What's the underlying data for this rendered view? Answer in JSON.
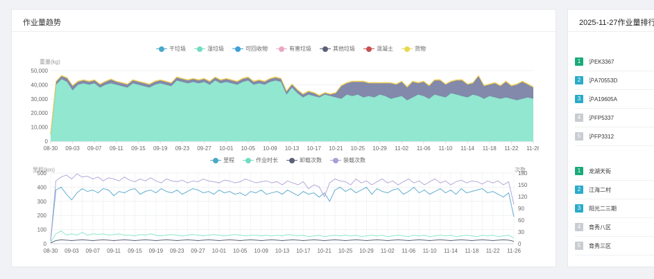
{
  "left_card": {
    "title": "作业量趋势"
  },
  "right_card": {
    "title": "2025-11-27作业量排行"
  },
  "chart_data": [
    {
      "type": "area",
      "ylabel": "重量(kg)",
      "ylim": [
        0,
        50000
      ],
      "yticks": [
        "0",
        "10,000",
        "20,000",
        "30,000",
        "40,000",
        "50,000"
      ],
      "x_tick_labels": [
        "08-30",
        "09-03",
        "09-07",
        "09-11",
        "09-15",
        "09-19",
        "09-23",
        "09-27",
        "10-01",
        "10-05",
        "10-09",
        "10-13",
        "10-17",
        "10-21",
        "10-25",
        "10-29",
        "11-02",
        "11-06",
        "11-10",
        "11-14",
        "11-18",
        "11-22",
        "11-26"
      ],
      "legend": [
        "干垃圾",
        "湿垃圾",
        "可回收物",
        "有害垃圾",
        "其他垃圾",
        "混凝土",
        "货物"
      ],
      "legend_placement": "top-center",
      "grid": true,
      "series": [
        {
          "name": "湿垃圾",
          "color": "#8be6cc",
          "values": [
            5000,
            40000,
            44000,
            42000,
            36000,
            40000,
            41000,
            40000,
            41000,
            38000,
            40000,
            41000,
            40000,
            39000,
            38000,
            41000,
            40000,
            39000,
            38000,
            40000,
            41000,
            40000,
            39000,
            43000,
            42000,
            41000,
            42000,
            41000,
            42000,
            40000,
            43000,
            41000,
            42000,
            41000,
            40000,
            42000,
            43000,
            40000,
            41000,
            40000,
            42000,
            43000,
            42000,
            33000,
            38000,
            34000,
            31000,
            33000,
            32000,
            31000,
            33000,
            32000,
            31000,
            30000,
            33000,
            32000,
            33000,
            31000,
            32000,
            31000,
            33000,
            32000,
            30000,
            31000,
            32000,
            29000,
            31000,
            33000,
            32000,
            30000,
            33000,
            32000,
            31000,
            34000,
            33000,
            32000,
            31000,
            33000,
            32000,
            30000,
            32000,
            31000,
            30000,
            31000,
            30000,
            29000,
            30000,
            31000,
            30000
          ]
        },
        {
          "name": "其他垃圾",
          "color": "#7b83a6",
          "values": [
            0,
            2000,
            2000,
            2500,
            3000,
            2000,
            2000,
            2000,
            2000,
            2000,
            2000,
            2500,
            2000,
            2000,
            2000,
            2000,
            2000,
            2000,
            2000,
            2000,
            2000,
            2000,
            2000,
            2000,
            2000,
            2000,
            2000,
            2000,
            2000,
            2000,
            2000,
            2000,
            2000,
            2000,
            2000,
            2000,
            2000,
            2000,
            2000,
            2000,
            2000,
            2000,
            2000,
            2000,
            2000,
            2000,
            2000,
            2000,
            2000,
            1000,
            1000,
            1000,
            3000,
            9000,
            8000,
            10000,
            9000,
            11000,
            9000,
            10000,
            8000,
            9000,
            11000,
            9000,
            10000,
            9000,
            11000,
            8000,
            10000,
            9000,
            10000,
            11000,
            9000,
            8000,
            10000,
            11000,
            9000,
            8000,
            14000,
            9000,
            8000,
            10000,
            9000,
            11000,
            9000,
            11000,
            12000,
            9000,
            8000
          ]
        },
        {
          "name": "货物",
          "color": "#f0cf5a",
          "values": [
            200,
            600,
            500,
            600,
            500,
            600,
            500,
            600,
            500,
            600,
            500,
            600,
            500,
            600,
            500,
            600,
            500,
            600,
            500,
            600,
            500,
            600,
            500,
            600,
            500,
            600,
            500,
            600,
            500,
            600,
            500,
            600,
            500,
            600,
            500,
            600,
            500,
            600,
            500,
            600,
            500,
            600,
            500,
            600,
            500,
            600,
            500,
            600,
            500,
            600,
            500,
            600,
            500,
            600,
            500,
            600,
            500,
            600,
            500,
            600,
            500,
            600,
            500,
            600,
            500,
            600,
            500,
            600,
            500,
            600,
            500,
            600,
            500,
            600,
            500,
            600,
            500,
            600,
            500,
            600,
            500,
            600,
            500,
            600,
            500,
            600,
            500,
            600,
            500
          ]
        }
      ]
    },
    {
      "type": "line",
      "ylabel": "里程(km)",
      "y2label": "次数",
      "ylim": [
        0,
        500
      ],
      "y2lim": [
        0,
        180
      ],
      "yticks": [
        "0",
        "100",
        "200",
        "300",
        "400",
        "500"
      ],
      "y2ticks": [
        "0",
        "30",
        "60",
        "90",
        "120",
        "150",
        "180"
      ],
      "x_tick_labels": [
        "08-30",
        "09-03",
        "09-07",
        "09-11",
        "09-15",
        "09-19",
        "09-23",
        "09-27",
        "10-01",
        "10-05",
        "10-09",
        "10-13",
        "10-17",
        "10-21",
        "10-25",
        "10-29",
        "11-02",
        "11-06",
        "11-10",
        "11-14",
        "11-18",
        "11-22",
        "11-26"
      ],
      "legend": [
        "里程",
        "作业时长",
        "卸载次数",
        "装载次数"
      ],
      "legend_placement": "top-center",
      "grid": true,
      "series": [
        {
          "name": "里程",
          "color": "#62aed0",
          "axis": "left",
          "values": [
            20,
            380,
            400,
            350,
            310,
            360,
            390,
            370,
            380,
            360,
            390,
            380,
            340,
            370,
            360,
            380,
            390,
            350,
            370,
            380,
            360,
            390,
            370,
            360,
            380,
            350,
            370,
            390,
            380,
            360,
            370,
            350,
            380,
            360,
            370,
            350,
            360,
            340,
            370,
            360,
            380,
            350,
            360,
            370,
            350,
            380,
            360,
            340,
            370,
            350,
            360,
            330,
            360,
            300,
            380,
            400,
            370,
            390,
            360,
            380,
            400,
            350,
            390,
            370,
            360,
            380,
            390,
            350,
            370,
            400,
            360,
            380,
            350,
            370,
            390,
            360,
            380,
            350,
            390,
            360,
            370,
            380,
            390,
            360,
            370,
            350,
            330,
            360,
            190
          ]
        },
        {
          "name": "作业时长",
          "color": "#8be6cc",
          "axis": "left",
          "values": [
            10,
            70,
            90,
            60,
            70,
            60,
            80,
            60,
            70,
            65,
            70,
            60,
            65,
            70,
            60,
            60,
            55,
            65,
            60,
            70,
            60,
            55,
            60,
            65,
            60,
            55,
            60,
            65,
            60,
            55,
            60,
            65,
            60,
            55,
            60,
            65,
            60,
            55,
            60,
            60,
            55,
            60,
            55,
            60,
            55,
            65,
            60,
            55,
            60,
            50,
            55,
            60,
            50,
            55,
            60,
            55,
            60,
            55,
            60,
            50,
            55,
            60,
            55,
            60,
            50,
            55,
            60,
            55,
            50,
            60,
            55,
            60,
            50,
            55,
            60,
            55,
            60,
            50,
            55,
            60,
            55,
            50,
            60,
            55,
            60,
            50,
            55,
            60,
            40
          ]
        },
        {
          "name": "卸载次数",
          "color": "#5b6079",
          "axis": "right",
          "values": [
            2,
            8,
            10,
            9,
            8,
            9,
            10,
            9,
            8,
            9,
            10,
            9,
            8,
            9,
            10,
            9,
            8,
            9,
            10,
            9,
            8,
            9,
            10,
            9,
            8,
            9,
            10,
            9,
            8,
            9,
            10,
            9,
            8,
            9,
            10,
            9,
            8,
            9,
            10,
            9,
            8,
            9,
            10,
            9,
            8,
            9,
            10,
            9,
            8,
            9,
            10,
            9,
            8,
            9,
            10,
            9,
            8,
            9,
            10,
            9,
            8,
            9,
            10,
            9,
            8,
            9,
            10,
            9,
            8,
            9,
            10,
            9,
            8,
            9,
            10,
            9,
            8,
            9,
            10,
            9,
            8,
            9,
            10,
            9,
            8,
            9,
            10,
            9,
            6
          ]
        },
        {
          "name": "装载次数",
          "color": "#b7a8d8",
          "axis": "right",
          "values": [
            10,
            160,
            170,
            175,
            165,
            178,
            170,
            172,
            165,
            170,
            160,
            168,
            165,
            160,
            170,
            162,
            158,
            165,
            160,
            168,
            160,
            155,
            165,
            160,
            158,
            162,
            155,
            160,
            158,
            165,
            160,
            158,
            155,
            162,
            160,
            155,
            158,
            165,
            160,
            155,
            158,
            160,
            155,
            158,
            150,
            160,
            155,
            150,
            158,
            140,
            150,
            145,
            120,
            155,
            165,
            160,
            158,
            150,
            165,
            155,
            160,
            150,
            158,
            165,
            155,
            160,
            150,
            158,
            165,
            155,
            160,
            150,
            158,
            165,
            155,
            160,
            150,
            158,
            162,
            155,
            160,
            158,
            152,
            160,
            155,
            160,
            150,
            158,
            100
          ]
        }
      ]
    }
  ],
  "ranking": {
    "vehicles": [
      {
        "rank": "1",
        "name": "沪EK3367",
        "color": "#1aaa79"
      },
      {
        "rank": "2",
        "name": "沪A70553D",
        "color": "#2aabc9"
      },
      {
        "rank": "3",
        "name": "沪A19605A",
        "color": "#2aabc9"
      },
      {
        "rank": "4",
        "name": "沪FP5337",
        "color": "#c9ccd1"
      },
      {
        "rank": "5",
        "name": "沪FP3312",
        "color": "#c9ccd1"
      }
    ],
    "areas": [
      {
        "rank": "1",
        "name": "龙湖天街",
        "color": "#1aaa79"
      },
      {
        "rank": "2",
        "name": "江海二村",
        "color": "#2aabc9"
      },
      {
        "rank": "3",
        "name": "阳光二三期",
        "color": "#2aabc9"
      },
      {
        "rank": "4",
        "name": "育秀八区",
        "color": "#c9ccd1"
      },
      {
        "rank": "5",
        "name": "育秀三区",
        "color": "#c9ccd1"
      }
    ]
  },
  "legend_colors": {
    "干垃圾": "#4aa8c9",
    "湿垃圾": "#72dcc0",
    "可回收物": "#3fa0d6",
    "有害垃圾": "#e8a8c2",
    "其他垃圾": "#5b6079",
    "混凝土": "#c75050",
    "货物": "#e8d850",
    "里程": "#4aa8c9",
    "作业时长": "#72dcc0",
    "卸载次数": "#5b6079",
    "装载次数": "#a99fd6"
  }
}
